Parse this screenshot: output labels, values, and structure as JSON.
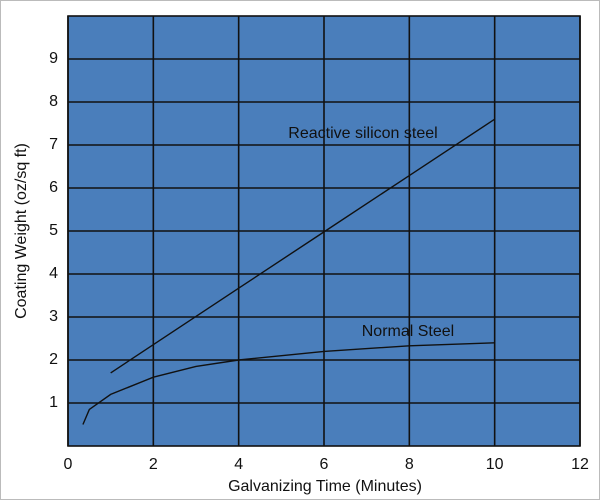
{
  "chart_data": {
    "type": "line",
    "x_label": "Galvanizing Time (Minutes)",
    "y_label": "Coating Weight (oz/sq ft)",
    "xlim": [
      0,
      12
    ],
    "xticks": [
      0,
      2,
      4,
      6,
      8,
      10,
      12
    ],
    "ylim": [
      0,
      10
    ],
    "yticks": [
      1,
      2,
      3,
      4,
      5,
      6,
      7,
      8,
      9
    ],
    "grid": true,
    "background": "#4a7ebb",
    "series": [
      {
        "name": "Reactive silicon steel",
        "color": "#111111",
        "x": [
          1,
          4,
          6,
          8,
          10
        ],
        "values": [
          1.7,
          3.67,
          4.98,
          6.29,
          7.6
        ]
      },
      {
        "name": "Normal Steel",
        "color": "#111111",
        "x": [
          0.35,
          0.5,
          1,
          2,
          3,
          4,
          6,
          8,
          10
        ],
        "values": [
          0.5,
          0.85,
          1.2,
          1.6,
          1.85,
          2.0,
          2.2,
          2.33,
          2.4
        ]
      }
    ]
  }
}
